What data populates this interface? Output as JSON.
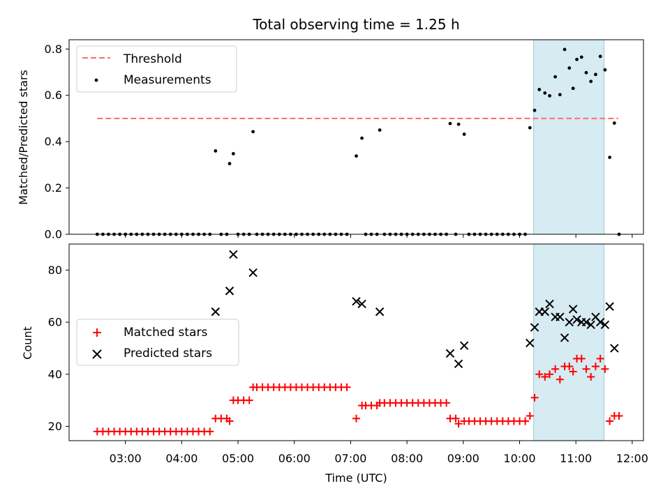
{
  "chart_data": {
    "title": "Total observing time = 1.25 h",
    "xlabel": "Time (UTC)",
    "x_ticks": [
      "03:00",
      "04:00",
      "05:00",
      "06:00",
      "07:00",
      "08:00",
      "09:00",
      "10:00",
      "11:00",
      "12:00"
    ],
    "highlight_span": [
      "10:15",
      "11:30"
    ],
    "panels": [
      {
        "type": "scatter",
        "ylabel": "Matched/Predicted stars",
        "ylim": [
          0,
          0.84
        ],
        "y_ticks": [
          0.0,
          0.2,
          0.4,
          0.6,
          0.8
        ],
        "threshold": {
          "name": "Threshold",
          "value": 0.5,
          "x_range": [
            "02:30",
            "11:45"
          ],
          "color": "#ff6b6b"
        },
        "legend": [
          "Threshold",
          "Measurements"
        ],
        "series": [
          {
            "name": "Measurements",
            "color": "#000000",
            "points": [
              [
                "02:30",
                0
              ],
              [
                "02:36",
                0
              ],
              [
                "02:42",
                0
              ],
              [
                "02:48",
                0
              ],
              [
                "02:54",
                0
              ],
              [
                "03:00",
                0
              ],
              [
                "03:06",
                0
              ],
              [
                "03:12",
                0
              ],
              [
                "03:18",
                0
              ],
              [
                "03:24",
                0
              ],
              [
                "03:30",
                0
              ],
              [
                "03:36",
                0
              ],
              [
                "03:42",
                0
              ],
              [
                "03:48",
                0
              ],
              [
                "03:54",
                0
              ],
              [
                "04:00",
                0
              ],
              [
                "04:06",
                0
              ],
              [
                "04:12",
                0
              ],
              [
                "04:18",
                0
              ],
              [
                "04:24",
                0
              ],
              [
                "04:30",
                0
              ],
              [
                "04:36",
                0.36
              ],
              [
                "04:42",
                0
              ],
              [
                "04:48",
                0
              ],
              [
                "04:51",
                0.305
              ],
              [
                "04:55",
                0.348
              ],
              [
                "05:00",
                0
              ],
              [
                "05:06",
                0
              ],
              [
                "05:12",
                0
              ],
              [
                "05:16",
                0.443
              ],
              [
                "05:20",
                0
              ],
              [
                "05:26",
                0
              ],
              [
                "05:32",
                0
              ],
              [
                "05:38",
                0
              ],
              [
                "05:44",
                0
              ],
              [
                "05:50",
                0
              ],
              [
                "05:56",
                0
              ],
              [
                "06:02",
                0
              ],
              [
                "06:08",
                0
              ],
              [
                "06:14",
                0
              ],
              [
                "06:20",
                0
              ],
              [
                "06:26",
                0
              ],
              [
                "06:32",
                0
              ],
              [
                "06:38",
                0
              ],
              [
                "06:44",
                0
              ],
              [
                "06:50",
                0
              ],
              [
                "06:56",
                0
              ],
              [
                "07:06",
                0.338
              ],
              [
                "07:12",
                0.415
              ],
              [
                "07:16",
                0
              ],
              [
                "07:22",
                0
              ],
              [
                "07:28",
                0
              ],
              [
                "07:31",
                0.45
              ],
              [
                "07:36",
                0
              ],
              [
                "07:42",
                0
              ],
              [
                "07:48",
                0
              ],
              [
                "07:54",
                0
              ],
              [
                "08:00",
                0
              ],
              [
                "08:06",
                0
              ],
              [
                "08:12",
                0
              ],
              [
                "08:18",
                0
              ],
              [
                "08:24",
                0
              ],
              [
                "08:30",
                0
              ],
              [
                "08:36",
                0
              ],
              [
                "08:42",
                0
              ],
              [
                "08:46",
                0.478
              ],
              [
                "08:52",
                0
              ],
              [
                "08:55",
                0.475
              ],
              [
                "09:01",
                0.432
              ],
              [
                "09:06",
                0
              ],
              [
                "09:12",
                0
              ],
              [
                "09:18",
                0
              ],
              [
                "09:24",
                0
              ],
              [
                "09:30",
                0
              ],
              [
                "09:36",
                0
              ],
              [
                "09:42",
                0
              ],
              [
                "09:48",
                0
              ],
              [
                "09:54",
                0
              ],
              [
                "10:00",
                0
              ],
              [
                "10:06",
                0
              ],
              [
                "10:11",
                0.46
              ],
              [
                "10:16",
                0.535
              ],
              [
                "10:21",
                0.625
              ],
              [
                "10:27",
                0.61
              ],
              [
                "10:32",
                0.598
              ],
              [
                "10:38",
                0.68
              ],
              [
                "10:43",
                0.603
              ],
              [
                "10:48",
                0.798
              ],
              [
                "10:53",
                0.718
              ],
              [
                "10:57",
                0.63
              ],
              [
                "11:01",
                0.755
              ],
              [
                "11:06",
                0.765
              ],
              [
                "11:11",
                0.698
              ],
              [
                "11:16",
                0.66
              ],
              [
                "11:21",
                0.69
              ],
              [
                "11:26",
                0.768
              ],
              [
                "11:31",
                0.71
              ],
              [
                "11:36",
                0.332
              ],
              [
                "11:41",
                0.48
              ],
              [
                "11:46",
                0.0
              ]
            ]
          }
        ]
      },
      {
        "type": "scatter",
        "ylabel": "Count",
        "ylim": [
          14.5,
          90
        ],
        "y_ticks": [
          20,
          40,
          60,
          80
        ],
        "legend": [
          "Matched stars",
          "Predicted stars"
        ],
        "series": [
          {
            "name": "Matched stars",
            "color": "#ff0000",
            "marker": "+",
            "points": [
              [
                "02:30",
                18
              ],
              [
                "02:36",
                18
              ],
              [
                "02:42",
                18
              ],
              [
                "02:48",
                18
              ],
              [
                "02:54",
                18
              ],
              [
                "03:00",
                18
              ],
              [
                "03:06",
                18
              ],
              [
                "03:12",
                18
              ],
              [
                "03:18",
                18
              ],
              [
                "03:24",
                18
              ],
              [
                "03:30",
                18
              ],
              [
                "03:36",
                18
              ],
              [
                "03:42",
                18
              ],
              [
                "03:48",
                18
              ],
              [
                "03:54",
                18
              ],
              [
                "04:00",
                18
              ],
              [
                "04:06",
                18
              ],
              [
                "04:12",
                18
              ],
              [
                "04:18",
                18
              ],
              [
                "04:24",
                18
              ],
              [
                "04:30",
                18
              ],
              [
                "04:36",
                23
              ],
              [
                "04:42",
                23
              ],
              [
                "04:48",
                23
              ],
              [
                "04:51",
                22
              ],
              [
                "04:55",
                30
              ],
              [
                "05:00",
                30
              ],
              [
                "05:06",
                30
              ],
              [
                "05:12",
                30
              ],
              [
                "05:16",
                35
              ],
              [
                "05:20",
                35
              ],
              [
                "05:26",
                35
              ],
              [
                "05:32",
                35
              ],
              [
                "05:38",
                35
              ],
              [
                "05:44",
                35
              ],
              [
                "05:50",
                35
              ],
              [
                "05:56",
                35
              ],
              [
                "06:02",
                35
              ],
              [
                "06:08",
                35
              ],
              [
                "06:14",
                35
              ],
              [
                "06:20",
                35
              ],
              [
                "06:26",
                35
              ],
              [
                "06:32",
                35
              ],
              [
                "06:38",
                35
              ],
              [
                "06:44",
                35
              ],
              [
                "06:50",
                35
              ],
              [
                "06:56",
                35
              ],
              [
                "07:06",
                23
              ],
              [
                "07:12",
                28
              ],
              [
                "07:16",
                28
              ],
              [
                "07:22",
                28
              ],
              [
                "07:28",
                28
              ],
              [
                "07:31",
                29
              ],
              [
                "07:36",
                29
              ],
              [
                "07:42",
                29
              ],
              [
                "07:48",
                29
              ],
              [
                "07:54",
                29
              ],
              [
                "08:00",
                29
              ],
              [
                "08:06",
                29
              ],
              [
                "08:12",
                29
              ],
              [
                "08:18",
                29
              ],
              [
                "08:24",
                29
              ],
              [
                "08:30",
                29
              ],
              [
                "08:36",
                29
              ],
              [
                "08:42",
                29
              ],
              [
                "08:46",
                23
              ],
              [
                "08:52",
                23
              ],
              [
                "08:55",
                21
              ],
              [
                "09:01",
                22
              ],
              [
                "09:06",
                22
              ],
              [
                "09:12",
                22
              ],
              [
                "09:18",
                22
              ],
              [
                "09:24",
                22
              ],
              [
                "09:30",
                22
              ],
              [
                "09:36",
                22
              ],
              [
                "09:42",
                22
              ],
              [
                "09:48",
                22
              ],
              [
                "09:54",
                22
              ],
              [
                "10:00",
                22
              ],
              [
                "10:06",
                22
              ],
              [
                "10:11",
                24
              ],
              [
                "10:16",
                31
              ],
              [
                "10:21",
                40
              ],
              [
                "10:27",
                39
              ],
              [
                "10:32",
                40
              ],
              [
                "10:38",
                42
              ],
              [
                "10:43",
                38
              ],
              [
                "10:48",
                43
              ],
              [
                "10:53",
                43
              ],
              [
                "10:57",
                41
              ],
              [
                "11:01",
                46
              ],
              [
                "11:06",
                46
              ],
              [
                "11:11",
                42
              ],
              [
                "11:16",
                39
              ],
              [
                "11:21",
                43
              ],
              [
                "11:26",
                46
              ],
              [
                "11:31",
                42
              ],
              [
                "11:36",
                22
              ],
              [
                "11:41",
                24
              ],
              [
                "11:46",
                24
              ]
            ]
          },
          {
            "name": "Predicted stars",
            "color": "#000000",
            "marker": "x",
            "points": [
              [
                "04:36",
                64
              ],
              [
                "04:51",
                72
              ],
              [
                "04:55",
                86
              ],
              [
                "05:16",
                79
              ],
              [
                "07:06",
                68
              ],
              [
                "07:12",
                67
              ],
              [
                "07:31",
                64
              ],
              [
                "08:46",
                48
              ],
              [
                "08:55",
                44
              ],
              [
                "09:01",
                51
              ],
              [
                "10:11",
                52
              ],
              [
                "10:16",
                58
              ],
              [
                "10:21",
                64
              ],
              [
                "10:27",
                64
              ],
              [
                "10:32",
                67
              ],
              [
                "10:38",
                62
              ],
              [
                "10:43",
                62
              ],
              [
                "10:48",
                54
              ],
              [
                "10:53",
                60
              ],
              [
                "10:57",
                65
              ],
              [
                "11:01",
                61
              ],
              [
                "11:06",
                60
              ],
              [
                "11:11",
                60
              ],
              [
                "11:16",
                59
              ],
              [
                "11:21",
                62
              ],
              [
                "11:26",
                60
              ],
              [
                "11:31",
                59
              ],
              [
                "11:36",
                66
              ],
              [
                "11:41",
                50
              ]
            ]
          }
        ]
      }
    ]
  }
}
